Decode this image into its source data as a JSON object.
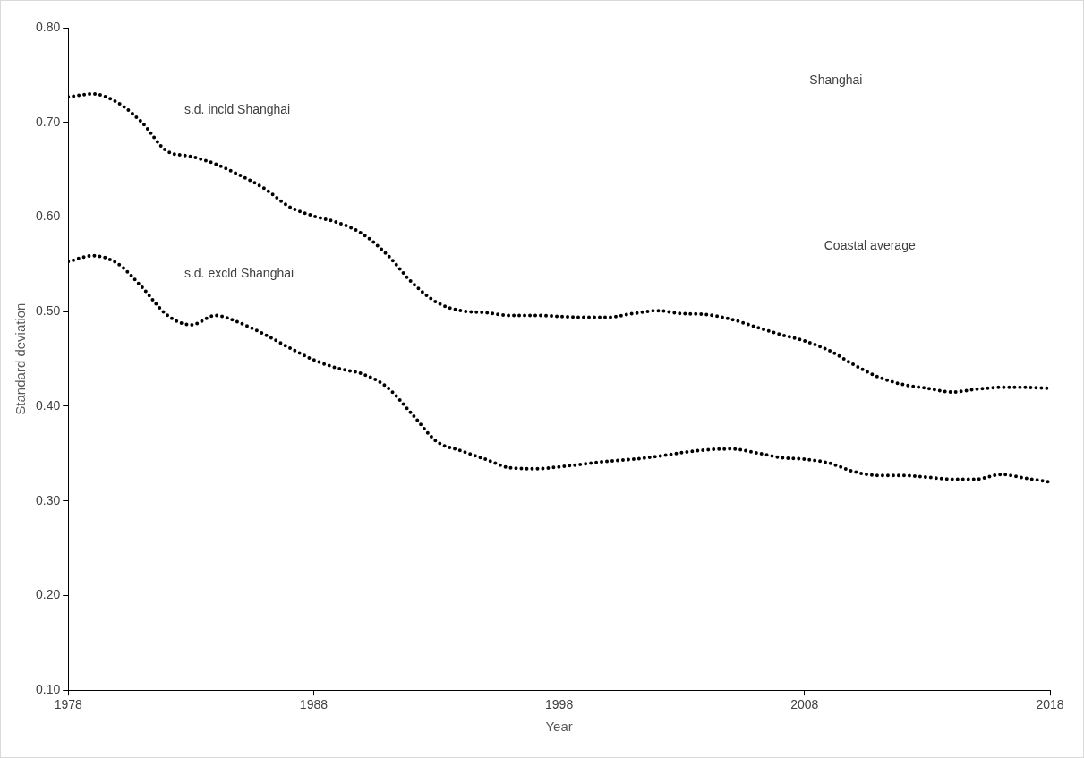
{
  "chart_data": {
    "type": "line",
    "xlabel": "Year",
    "ylabel": "Standard deviation",
    "x": [
      1978,
      1979,
      1980,
      1981,
      1982,
      1983,
      1984,
      1985,
      1986,
      1987,
      1988,
      1989,
      1990,
      1991,
      1992,
      1993,
      1994,
      1995,
      1996,
      1997,
      1998,
      1999,
      2000,
      2001,
      2002,
      2003,
      2004,
      2005,
      2006,
      2007,
      2008,
      2009,
      2010,
      2011,
      2012,
      2013,
      2014,
      2015,
      2016,
      2017,
      2018
    ],
    "series": [
      {
        "name": "s.d. incld Shanghai",
        "color": "#000000",
        "values": [
          0.727,
          0.73,
          0.721,
          0.7,
          0.67,
          0.664,
          0.656,
          0.644,
          0.63,
          0.611,
          0.601,
          0.594,
          0.582,
          0.56,
          0.531,
          0.51,
          0.501,
          0.499,
          0.496,
          0.496,
          0.495,
          0.494,
          0.494,
          0.498,
          0.501,
          0.498,
          0.497,
          0.492,
          0.484,
          0.476,
          0.469,
          0.459,
          0.444,
          0.431,
          0.423,
          0.419,
          0.415,
          0.418,
          0.42,
          0.42,
          0.419
        ]
      },
      {
        "name": "s.d. excld Shanghai",
        "color": "#000000",
        "values": [
          0.553,
          0.559,
          0.551,
          0.526,
          0.497,
          0.486,
          0.496,
          0.488,
          0.476,
          0.462,
          0.449,
          0.44,
          0.434,
          0.42,
          0.392,
          0.363,
          0.353,
          0.344,
          0.335,
          0.334,
          0.336,
          0.339,
          0.342,
          0.344,
          0.347,
          0.351,
          0.354,
          0.355,
          0.351,
          0.346,
          0.344,
          0.34,
          0.331,
          0.327,
          0.327,
          0.325,
          0.323,
          0.323,
          0.328,
          0.324,
          0.32
        ]
      }
    ],
    "annotations": [
      "Shanghai",
      "Coastal average"
    ],
    "xlim": [
      1978,
      2018
    ],
    "xticks": [
      1978,
      1988,
      1998,
      2008,
      2018
    ],
    "ylim": [
      0.1,
      0.8
    ],
    "yticks": [
      {
        "value": 0.1,
        "label": "0.10"
      },
      {
        "value": 0.2,
        "label": "0.20"
      },
      {
        "value": 0.3,
        "label": "0.30"
      },
      {
        "value": 0.4,
        "label": "0.40"
      },
      {
        "value": 0.5,
        "label": "0.50"
      },
      {
        "value": 0.6,
        "label": "0.60"
      },
      {
        "value": 0.7,
        "label": "0.70"
      },
      {
        "value": 0.8,
        "label": "0.80"
      }
    ],
    "grid": false,
    "legend": false,
    "marker": "none",
    "line_style": "dotted"
  }
}
